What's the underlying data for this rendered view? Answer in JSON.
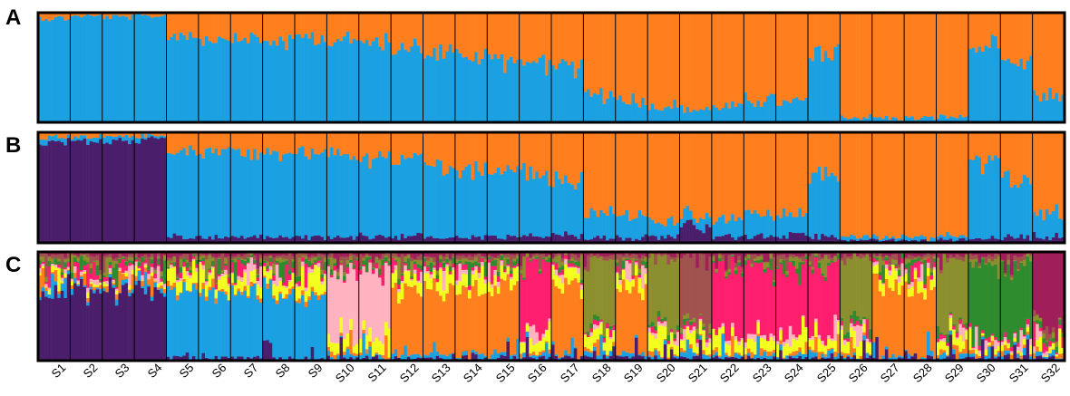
{
  "chart_data": {
    "type": "bar",
    "stacked": true,
    "ylim": [
      0,
      1
    ],
    "categories": [
      "S1",
      "S2",
      "S3",
      "S4",
      "S5",
      "S6",
      "S7",
      "S8",
      "S9",
      "S10",
      "S11",
      "S12",
      "S13",
      "S14",
      "S15",
      "S16",
      "S17",
      "S18",
      "S19",
      "S20",
      "S21",
      "S22",
      "S23",
      "S24",
      "S25",
      "S26",
      "S27",
      "S28",
      "S29",
      "S30",
      "S31",
      "S32"
    ],
    "panels": [
      {
        "label": "A",
        "k": 2,
        "cluster_colors": [
          "#1ba1e2",
          "#ff7f1e"
        ],
        "group_mean_proportions": [
          [
            0.95,
            0.05
          ],
          [
            0.97,
            0.03
          ],
          [
            0.96,
            0.04
          ],
          [
            0.97,
            0.03
          ],
          [
            0.8,
            0.2
          ],
          [
            0.78,
            0.22
          ],
          [
            0.76,
            0.24
          ],
          [
            0.74,
            0.26
          ],
          [
            0.78,
            0.22
          ],
          [
            0.75,
            0.25
          ],
          [
            0.72,
            0.28
          ],
          [
            0.7,
            0.3
          ],
          [
            0.65,
            0.35
          ],
          [
            0.6,
            0.4
          ],
          [
            0.58,
            0.42
          ],
          [
            0.55,
            0.45
          ],
          [
            0.5,
            0.5
          ],
          [
            0.25,
            0.75
          ],
          [
            0.2,
            0.8
          ],
          [
            0.15,
            0.85
          ],
          [
            0.12,
            0.88
          ],
          [
            0.15,
            0.85
          ],
          [
            0.2,
            0.8
          ],
          [
            0.18,
            0.82
          ],
          [
            0.6,
            0.4
          ],
          [
            0.05,
            0.95
          ],
          [
            0.04,
            0.96
          ],
          [
            0.04,
            0.96
          ],
          [
            0.05,
            0.95
          ],
          [
            0.7,
            0.3
          ],
          [
            0.55,
            0.45
          ],
          [
            0.25,
            0.75
          ]
        ]
      },
      {
        "label": "B",
        "k": 3,
        "cluster_colors": [
          "#4b1e6b",
          "#1ba1e2",
          "#ff7f1e"
        ],
        "group_mean_proportions": [
          [
            0.92,
            0.04,
            0.04
          ],
          [
            0.93,
            0.03,
            0.04
          ],
          [
            0.91,
            0.05,
            0.04
          ],
          [
            0.93,
            0.04,
            0.03
          ],
          [
            0.06,
            0.76,
            0.18
          ],
          [
            0.05,
            0.77,
            0.18
          ],
          [
            0.06,
            0.75,
            0.19
          ],
          [
            0.05,
            0.74,
            0.21
          ],
          [
            0.05,
            0.78,
            0.17
          ],
          [
            0.05,
            0.76,
            0.19
          ],
          [
            0.06,
            0.7,
            0.24
          ],
          [
            0.06,
            0.7,
            0.24
          ],
          [
            0.05,
            0.67,
            0.28
          ],
          [
            0.05,
            0.62,
            0.33
          ],
          [
            0.05,
            0.62,
            0.33
          ],
          [
            0.06,
            0.55,
            0.39
          ],
          [
            0.06,
            0.5,
            0.44
          ],
          [
            0.05,
            0.22,
            0.73
          ],
          [
            0.05,
            0.2,
            0.75
          ],
          [
            0.06,
            0.14,
            0.8
          ],
          [
            0.15,
            0.1,
            0.75
          ],
          [
            0.06,
            0.16,
            0.78
          ],
          [
            0.06,
            0.2,
            0.74
          ],
          [
            0.06,
            0.18,
            0.76
          ],
          [
            0.06,
            0.58,
            0.36
          ],
          [
            0.02,
            0.03,
            0.95
          ],
          [
            0.02,
            0.03,
            0.95
          ],
          [
            0.02,
            0.03,
            0.95
          ],
          [
            0.03,
            0.04,
            0.93
          ],
          [
            0.05,
            0.68,
            0.27
          ],
          [
            0.05,
            0.55,
            0.4
          ],
          [
            0.06,
            0.22,
            0.72
          ]
        ]
      },
      {
        "label": "C",
        "k": 10,
        "cluster_colors": [
          "#4b1e6b",
          "#1ba1e2",
          "#ff7f1e",
          "#f2ff1f",
          "#ffb3c1",
          "#ff1f6e",
          "#2e8b2e",
          "#8b8f2e",
          "#a0524e",
          "#a01f5a"
        ],
        "group_dominant_cluster": [
          0,
          0,
          0,
          0,
          1,
          1,
          1,
          1,
          1,
          4,
          4,
          2,
          2,
          2,
          2,
          5,
          2,
          7,
          2,
          7,
          8,
          5,
          5,
          5,
          5,
          7,
          2,
          2,
          7,
          6,
          6,
          9
        ]
      }
    ]
  }
}
